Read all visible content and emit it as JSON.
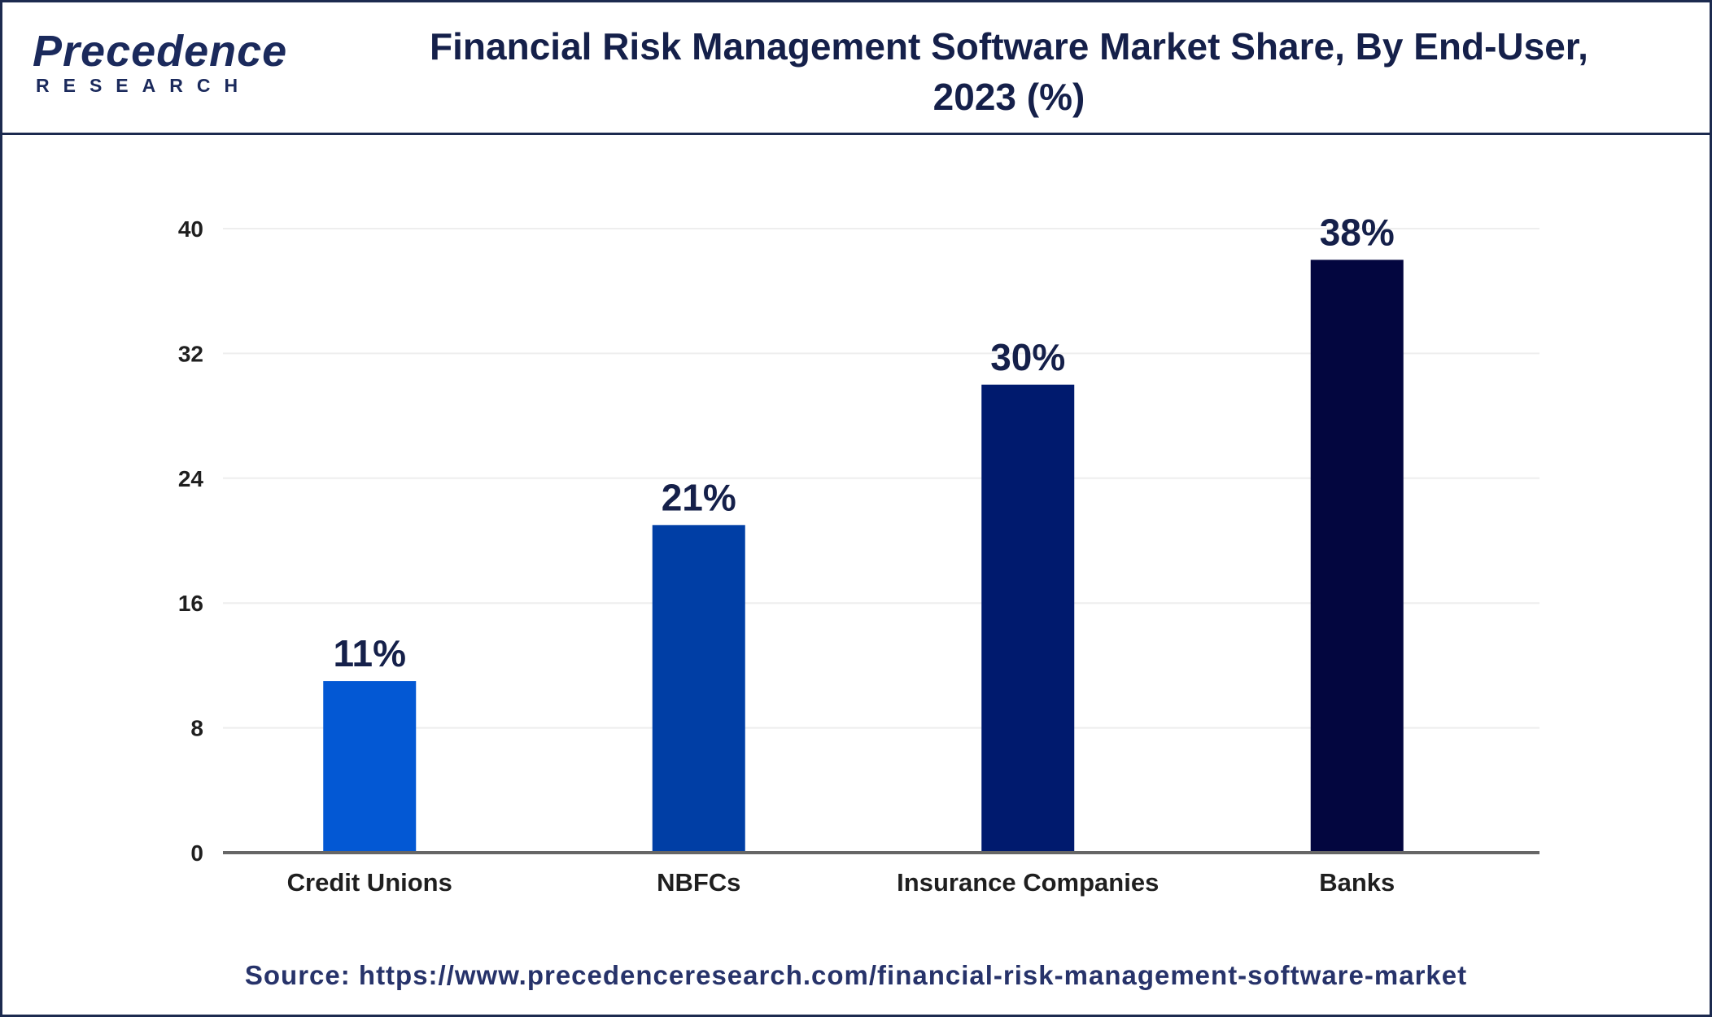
{
  "header": {
    "logo_word": "Precedence",
    "logo_sub": "RESEARCH",
    "title_line1": "Financial Risk Management Software Market Share, By End-User,",
    "title_line2": "2023 (%)"
  },
  "chart_data": {
    "type": "bar",
    "title": "Financial Risk Management Software Market Share, By End-User, 2023 (%)",
    "categories": [
      "Credit Unions",
      "NBFCs",
      "Insurance Companies",
      "Banks"
    ],
    "values": [
      11,
      21,
      30,
      38
    ],
    "data_labels": [
      "11%",
      "21%",
      "30%",
      "38%"
    ],
    "colors": [
      "#0358d4",
      "#003ea5",
      "#001a6e",
      "#03063f"
    ],
    "ylim": [
      0,
      40
    ],
    "yticks": [
      0,
      8,
      16,
      24,
      32,
      40
    ],
    "xlabel": "",
    "ylabel": "",
    "grid": true,
    "legend": "none"
  },
  "footer": {
    "source": "Source: https://www.precedenceresearch.com/financial-risk-management-software-market"
  }
}
